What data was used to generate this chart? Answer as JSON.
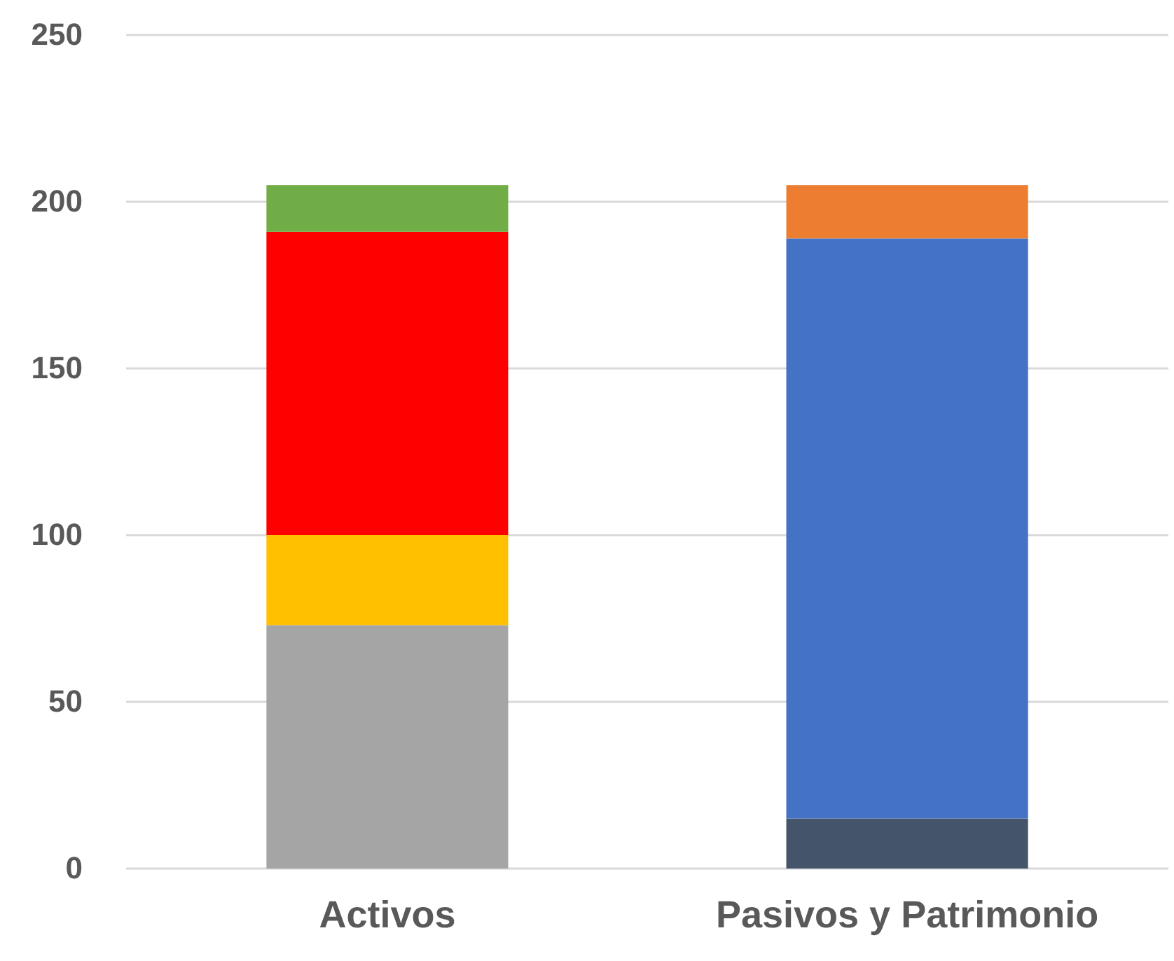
{
  "chart_data": {
    "type": "bar",
    "stacked": true,
    "categories": [
      "Activos",
      "Pasivos y Patrimonio"
    ],
    "series": [
      {
        "color": "#a5a5a5",
        "values": [
          73,
          null
        ]
      },
      {
        "color": "#ffc000",
        "values": [
          27,
          null
        ]
      },
      {
        "color": "#ff0000",
        "values": [
          91,
          null
        ]
      },
      {
        "color": "#70ad47",
        "values": [
          14,
          null
        ]
      },
      {
        "color": "#44546a",
        "values": [
          null,
          15
        ]
      },
      {
        "color": "#4472c4",
        "values": [
          null,
          174
        ]
      },
      {
        "color": "#ed7d31",
        "values": [
          null,
          16
        ]
      }
    ],
    "ylim": [
      0,
      250
    ],
    "yticks": [
      0,
      50,
      100,
      150,
      200,
      250
    ],
    "grid": "y"
  }
}
